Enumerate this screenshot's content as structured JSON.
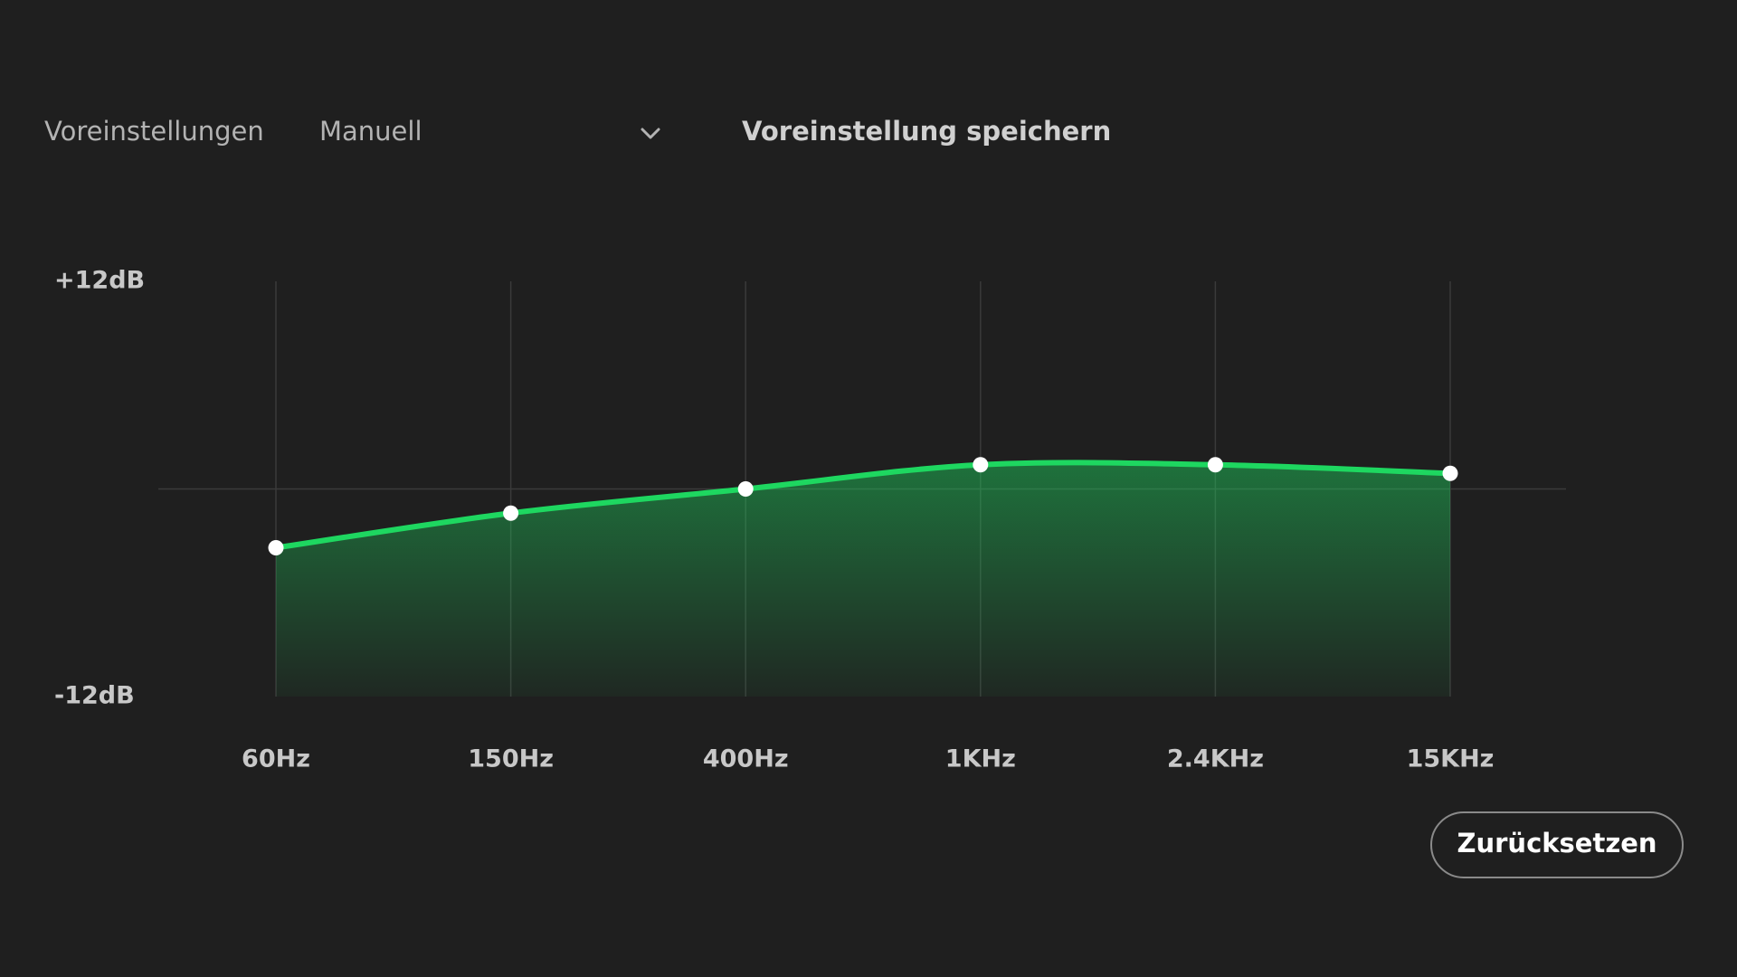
{
  "presets_label": "Voreinstellungen",
  "preset_value": "Manuell",
  "save_preset": "Voreinstellung speichern",
  "reset_button": "Zurücksetzen",
  "chart_data": {
    "type": "line",
    "categories": [
      "60Hz",
      "150Hz",
      "400Hz",
      "1KHz",
      "2.4KHz",
      "15KHz"
    ],
    "values": [
      -3.4,
      -1.4,
      0,
      1.4,
      1.4,
      0.9
    ],
    "color": "#1ed760",
    "ylim": [
      -12,
      12
    ],
    "yticks": [
      {
        "value": 12,
        "label": "+12dB"
      },
      {
        "value": -12,
        "label": "-12dB"
      }
    ]
  }
}
